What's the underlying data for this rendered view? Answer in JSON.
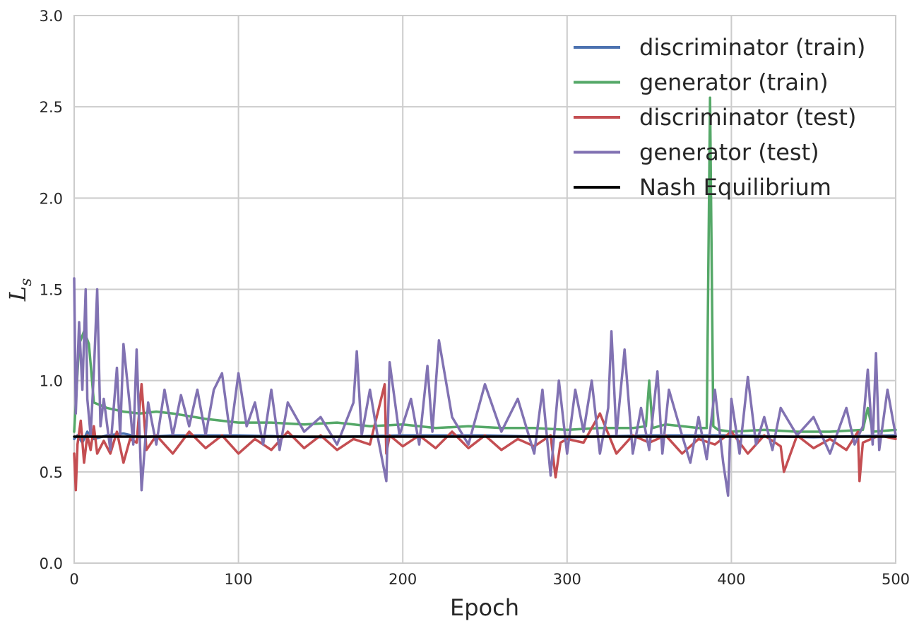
{
  "chart_data": {
    "type": "line",
    "title": "",
    "xlabel": "Epoch",
    "ylabel": {
      "main": "L",
      "subscript": "s"
    },
    "xlim": [
      0,
      500
    ],
    "ylim": [
      0,
      3.0
    ],
    "xticks": [
      0,
      100,
      200,
      300,
      400,
      500
    ],
    "xtick_labels": [
      "0",
      "100",
      "200",
      "300",
      "400",
      "500"
    ],
    "yticks": [
      0,
      0.5,
      1.0,
      1.5,
      2.0,
      2.5,
      3.0
    ],
    "ytick_labels": [
      "0.0",
      "0.5",
      "1.0",
      "1.5",
      "2.0",
      "2.5",
      "3.0"
    ],
    "grid": true,
    "legend_position": "top-right",
    "series": [
      {
        "name": "discriminator (train)",
        "color": "#4c72b0",
        "x": [
          0,
          2,
          5,
          8,
          12,
          20,
          30,
          40,
          60,
          80,
          100,
          150,
          200,
          250,
          300,
          350,
          400,
          450,
          500
        ],
        "y": [
          0.68,
          0.7,
          0.66,
          0.72,
          0.68,
          0.7,
          0.71,
          0.69,
          0.7,
          0.7,
          0.7,
          0.69,
          0.7,
          0.7,
          0.69,
          0.7,
          0.7,
          0.69,
          0.7
        ]
      },
      {
        "name": "generator (train)",
        "color": "#55a868",
        "x": [
          0,
          3,
          6,
          9,
          12,
          20,
          30,
          40,
          50,
          60,
          80,
          100,
          120,
          140,
          160,
          180,
          200,
          220,
          240,
          260,
          280,
          300,
          320,
          340,
          348,
          350,
          352,
          360,
          380,
          385,
          387,
          389,
          392,
          400,
          420,
          440,
          460,
          480,
          483,
          486,
          500
        ],
        "y": [
          0.72,
          1.2,
          1.27,
          1.2,
          0.88,
          0.85,
          0.83,
          0.82,
          0.83,
          0.82,
          0.79,
          0.77,
          0.77,
          0.76,
          0.77,
          0.75,
          0.76,
          0.74,
          0.75,
          0.74,
          0.74,
          0.73,
          0.74,
          0.74,
          0.75,
          1.0,
          0.74,
          0.76,
          0.74,
          0.74,
          2.55,
          0.75,
          0.73,
          0.72,
          0.73,
          0.72,
          0.72,
          0.73,
          0.85,
          0.72,
          0.73
        ]
      },
      {
        "name": "discriminator (test)",
        "color": "#c44e52",
        "x": [
          0,
          1,
          2,
          4,
          6,
          8,
          10,
          12,
          14,
          18,
          22,
          26,
          30,
          34,
          38,
          41,
          44,
          50,
          60,
          70,
          80,
          90,
          100,
          110,
          120,
          130,
          140,
          150,
          160,
          170,
          180,
          189,
          190,
          192,
          200,
          210,
          220,
          230,
          240,
          250,
          260,
          270,
          280,
          290,
          293,
          296,
          300,
          310,
          320,
          330,
          340,
          350,
          360,
          370,
          380,
          390,
          400,
          410,
          420,
          430,
          432,
          440,
          450,
          460,
          470,
          477,
          478,
          480,
          490,
          500
        ],
        "y": [
          0.6,
          0.4,
          0.65,
          0.78,
          0.55,
          0.7,
          0.62,
          0.75,
          0.6,
          0.67,
          0.6,
          0.72,
          0.55,
          0.68,
          0.66,
          0.98,
          0.62,
          0.7,
          0.6,
          0.72,
          0.63,
          0.7,
          0.6,
          0.68,
          0.62,
          0.72,
          0.63,
          0.7,
          0.62,
          0.68,
          0.65,
          0.98,
          0.6,
          0.7,
          0.64,
          0.7,
          0.63,
          0.72,
          0.63,
          0.7,
          0.62,
          0.68,
          0.64,
          0.7,
          0.47,
          0.66,
          0.68,
          0.66,
          0.82,
          0.6,
          0.7,
          0.66,
          0.7,
          0.6,
          0.68,
          0.65,
          0.72,
          0.6,
          0.7,
          0.64,
          0.5,
          0.7,
          0.63,
          0.68,
          0.62,
          0.72,
          0.45,
          0.66,
          0.7,
          0.68
        ]
      },
      {
        "name": "generator (test)",
        "color": "#8172b2",
        "x": [
          0,
          1,
          3,
          5,
          7,
          8,
          10,
          12,
          14,
          16,
          18,
          22,
          26,
          28,
          30,
          34,
          36,
          38,
          41,
          45,
          50,
          55,
          60,
          65,
          70,
          75,
          80,
          85,
          90,
          95,
          100,
          105,
          110,
          115,
          120,
          125,
          130,
          140,
          150,
          160,
          170,
          172,
          175,
          180,
          185,
          190,
          192,
          198,
          205,
          210,
          215,
          218,
          222,
          230,
          240,
          250,
          260,
          270,
          280,
          285,
          290,
          295,
          300,
          305,
          310,
          315,
          320,
          325,
          327,
          330,
          335,
          340,
          345,
          350,
          355,
          358,
          362,
          370,
          375,
          380,
          385,
          390,
          395,
          398,
          400,
          405,
          410,
          415,
          420,
          425,
          430,
          440,
          450,
          460,
          470,
          475,
          480,
          483,
          486,
          488,
          490,
          495,
          500
        ],
        "y": [
          1.56,
          0.82,
          1.32,
          0.95,
          1.5,
          0.9,
          0.7,
          1.05,
          1.5,
          0.75,
          0.9,
          0.62,
          1.07,
          0.7,
          1.2,
          0.85,
          0.65,
          1.17,
          0.4,
          0.88,
          0.65,
          0.95,
          0.7,
          0.92,
          0.75,
          0.95,
          0.7,
          0.95,
          1.04,
          0.7,
          1.04,
          0.75,
          0.88,
          0.65,
          0.95,
          0.62,
          0.88,
          0.72,
          0.8,
          0.65,
          0.88,
          1.16,
          0.7,
          0.95,
          0.68,
          0.45,
          1.1,
          0.7,
          0.9,
          0.65,
          1.08,
          0.72,
          1.22,
          0.8,
          0.65,
          0.98,
          0.72,
          0.9,
          0.6,
          0.95,
          0.48,
          1.0,
          0.6,
          0.95,
          0.72,
          1.0,
          0.6,
          0.85,
          1.27,
          0.7,
          1.17,
          0.6,
          0.85,
          0.62,
          1.05,
          0.6,
          0.95,
          0.7,
          0.55,
          0.8,
          0.57,
          0.95,
          0.55,
          0.37,
          0.9,
          0.6,
          1.02,
          0.65,
          0.8,
          0.62,
          0.85,
          0.7,
          0.8,
          0.6,
          0.85,
          0.65,
          0.75,
          1.06,
          0.65,
          1.15,
          0.62,
          0.95,
          0.7
        ]
      },
      {
        "name": "Nash Equilibrium",
        "color": "#000000",
        "x": [
          0,
          500
        ],
        "y": [
          0.693,
          0.693
        ]
      }
    ]
  },
  "style": {
    "background": "#ffffff",
    "grid_color": "#cccccc",
    "axes_edge_color": "#cccccc",
    "text_color": "#262626"
  }
}
